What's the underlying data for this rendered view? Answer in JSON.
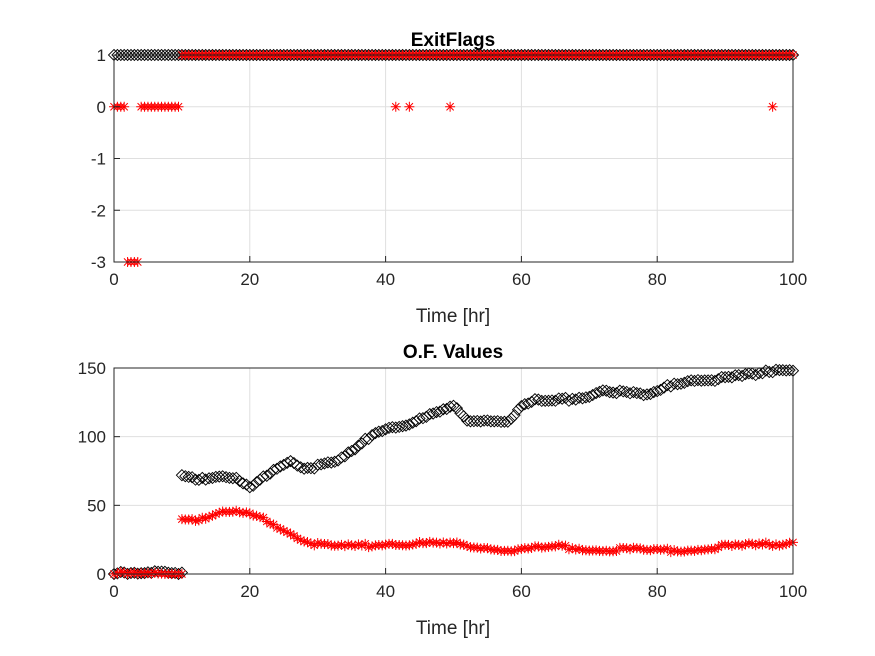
{
  "chart_data": [
    {
      "type": "scatter",
      "title": "ExitFlags",
      "xlabel": "Time [hr]",
      "ylabel": "",
      "xlim": [
        0,
        100
      ],
      "ylim": [
        -3,
        1
      ],
      "xticks": [
        "0",
        "20",
        "40",
        "60",
        "80",
        "100"
      ],
      "yticks": [
        "1",
        "0",
        "-1",
        "-2",
        "-3"
      ],
      "grid": true,
      "series": [
        {
          "marker": "diamond",
          "color": "#000000",
          "points": [
            {
              "x_from": 0,
              "x_to": 100,
              "step": 0.5,
              "y": 1
            }
          ]
        },
        {
          "marker": "asterisk",
          "color": "#ff0000",
          "points": [
            {
              "x_from": 0,
              "x_to": 1.5,
              "step": 0.5,
              "y": 0
            },
            {
              "x_from": 2.0,
              "x_to": 3.5,
              "step": 0.5,
              "y": -3
            },
            {
              "x_from": 4.0,
              "x_to": 9.5,
              "step": 0.5,
              "y": 0
            },
            {
              "x_from": 10,
              "x_to": 100,
              "step": 0.5,
              "y": 1
            },
            {
              "x": 41.5,
              "y": 0
            },
            {
              "x": 43.5,
              "y": 0
            },
            {
              "x": 49.5,
              "y": 0
            },
            {
              "x": 97,
              "y": 0
            }
          ]
        }
      ]
    },
    {
      "type": "scatter",
      "title": "O.F. Values",
      "xlabel": "Time [hr]",
      "ylabel": "",
      "xlim": [
        0,
        100
      ],
      "ylim": [
        0,
        150
      ],
      "xticks": [
        "0",
        "20",
        "40",
        "60",
        "80",
        "100"
      ],
      "yticks": [
        "150",
        "100",
        "50",
        "0"
      ],
      "grid": true,
      "series": [
        {
          "marker": "diamond",
          "color": "#000000",
          "segments": [
            {
              "x": [
                0,
                2,
                4,
                6,
                8,
                10
              ],
              "y": [
                0,
                0,
                0,
                1,
                2,
                1
              ]
            },
            {
              "x": [
                10,
                12,
                15,
                18,
                20,
                22,
                24,
                26,
                28,
                30,
                33,
                36,
                38,
                40,
                42,
                45,
                48,
                50,
                52,
                55,
                58,
                60,
                62,
                65,
                68,
                70,
                72,
                75,
                78,
                80,
                82,
                85,
                88,
                90,
                92,
                95,
                98,
                100
              ],
              "y": [
                72,
                70,
                70,
                69,
                62,
                70,
                78,
                83,
                78,
                78,
                82,
                92,
                102,
                106,
                108,
                112,
                118,
                122,
                112,
                112,
                112,
                122,
                126,
                126,
                128,
                130,
                135,
                132,
                130,
                132,
                138,
                142,
                142,
                142,
                144,
                145,
                150,
                148
              ]
            }
          ]
        },
        {
          "marker": "asterisk",
          "color": "#ff0000",
          "segments": [
            {
              "x": [
                0,
                2,
                4,
                6,
                8,
                10
              ],
              "y": [
                0,
                0,
                0,
                0,
                0,
                0
              ]
            },
            {
              "x": [
                10,
                12,
                14,
                16,
                18,
                20,
                22,
                24,
                26,
                28,
                30,
                33,
                36,
                40,
                45,
                50,
                53,
                57,
                60,
                65,
                70,
                75,
                80,
                85,
                90,
                95,
                100
              ],
              "y": [
                40,
                40,
                42,
                44,
                45,
                43,
                40,
                35,
                30,
                25,
                21,
                20,
                20,
                22,
                22,
                22,
                20,
                18,
                18,
                20,
                18,
                18,
                17,
                18,
                20,
                21,
                23
              ]
            }
          ]
        }
      ]
    }
  ]
}
